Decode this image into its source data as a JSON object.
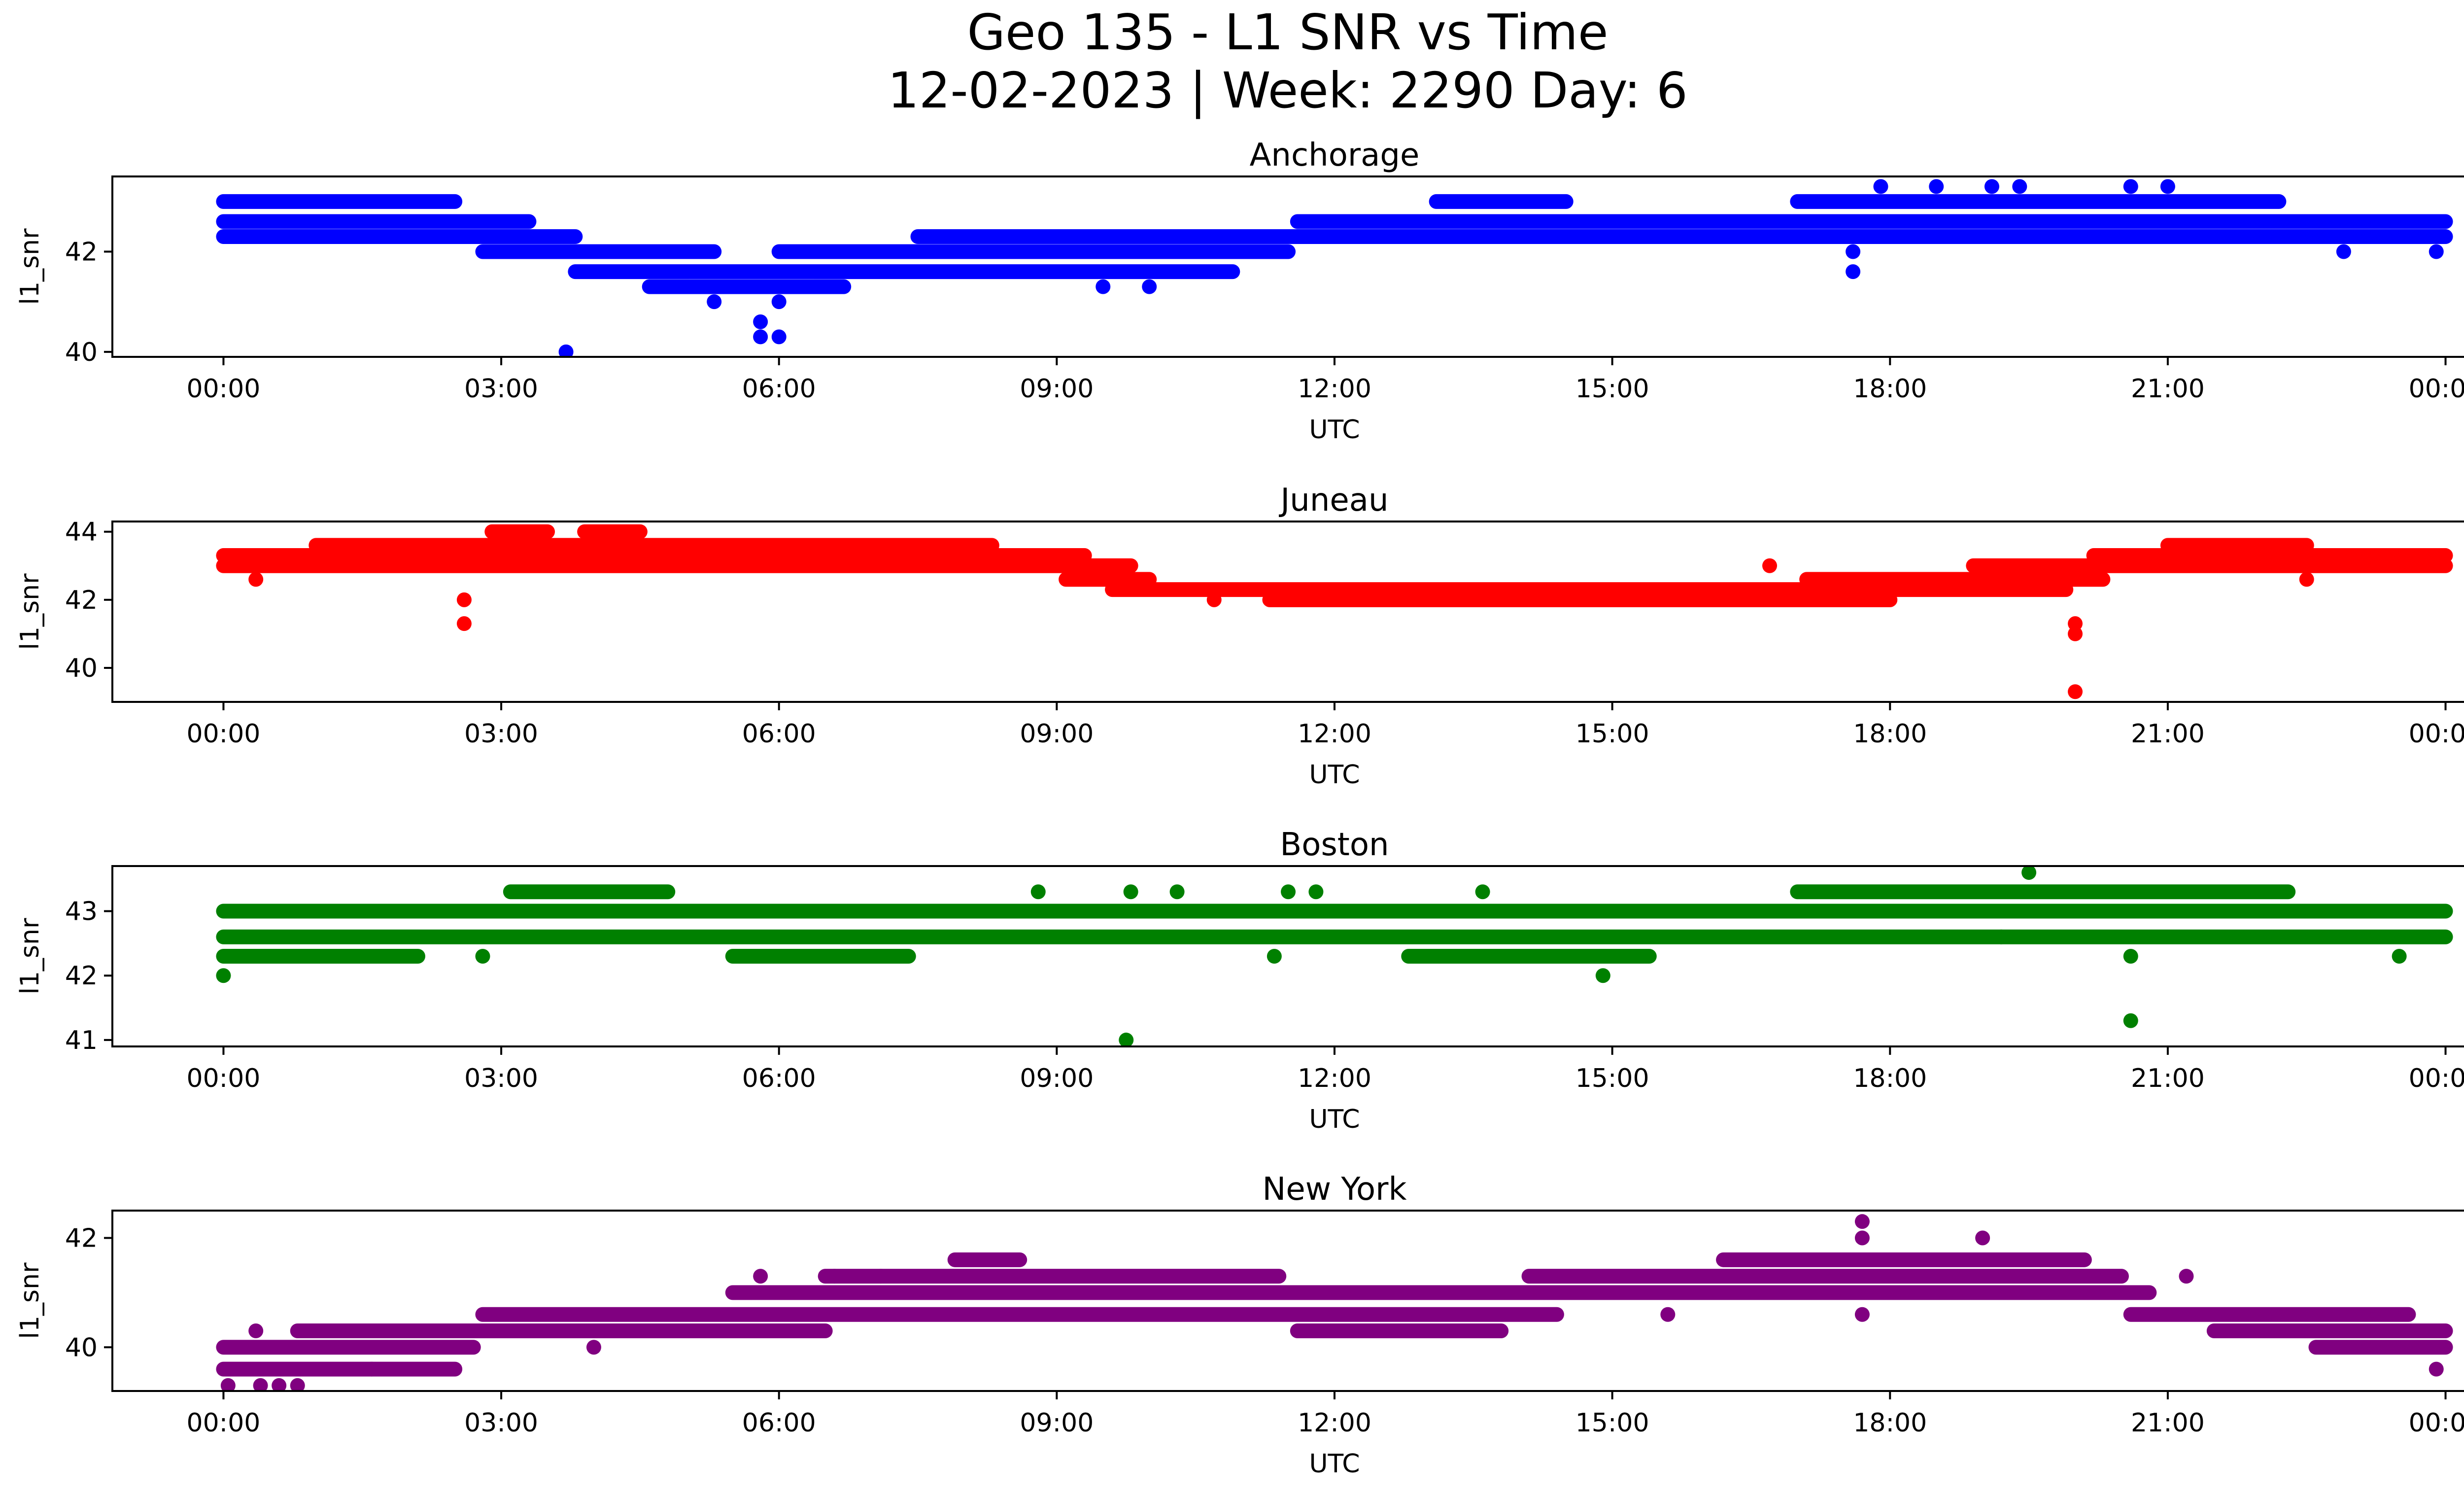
{
  "figure": {
    "title_line1": "Geo 135 - L1 SNR vs Time",
    "title_line2": "12-02-2023 | Week: 2290 Day: 6"
  },
  "chart_data": [
    {
      "type": "scatter",
      "title": "Anchorage",
      "xlabel": "UTC",
      "ylabel": "l1_snr",
      "color": "#0000ff",
      "x_ticks": [
        "00:00",
        "03:00",
        "06:00",
        "09:00",
        "12:00",
        "15:00",
        "18:00",
        "21:00",
        "00:00"
      ],
      "y_ticks": [
        40,
        42
      ],
      "ylim": [
        39.9,
        43.5
      ],
      "xlim_hours": [
        -1.2,
        25.2
      ],
      "bands": [
        {
          "y": 43.0,
          "segments": [
            [
              0.0,
              2.5
            ],
            [
              13.1,
              14.5
            ],
            [
              17.0,
              22.2
            ]
          ]
        },
        {
          "y": 42.6,
          "segments": [
            [
              0.0,
              3.3
            ],
            [
              11.6,
              24.0
            ]
          ]
        },
        {
          "y": 42.3,
          "segments": [
            [
              0.0,
              3.8
            ],
            [
              7.5,
              24.0
            ]
          ]
        },
        {
          "y": 42.0,
          "segments": [
            [
              2.8,
              5.3
            ],
            [
              6.0,
              11.5
            ]
          ]
        },
        {
          "y": 41.6,
          "segments": [
            [
              3.8,
              10.9
            ]
          ]
        },
        {
          "y": 41.3,
          "segments": [
            [
              4.6,
              6.7
            ]
          ]
        }
      ],
      "outliers": [
        [
          3.7,
          40.0
        ],
        [
          5.8,
          40.3
        ],
        [
          5.8,
          40.6
        ],
        [
          6.0,
          41.0
        ],
        [
          6.0,
          40.3
        ],
        [
          5.3,
          41.0
        ],
        [
          17.6,
          41.6
        ],
        [
          17.6,
          42.0
        ],
        [
          18.5,
          43.3
        ],
        [
          19.4,
          43.3
        ],
        [
          17.9,
          43.3
        ],
        [
          19.1,
          43.3
        ],
        [
          20.6,
          43.3
        ],
        [
          21.0,
          43.3
        ],
        [
          8.3,
          42.3
        ],
        [
          9.5,
          41.3
        ],
        [
          10.0,
          41.3
        ],
        [
          11.2,
          42.0
        ],
        [
          22.9,
          42.0
        ],
        [
          23.9,
          42.0
        ]
      ]
    },
    {
      "type": "scatter",
      "title": "Juneau",
      "xlabel": "UTC",
      "ylabel": "l1_snr",
      "color": "#ff0000",
      "x_ticks": [
        "00:00",
        "03:00",
        "06:00",
        "09:00",
        "12:00",
        "15:00",
        "18:00",
        "21:00",
        "00:00"
      ],
      "y_ticks": [
        40,
        42,
        44
      ],
      "ylim": [
        39.0,
        44.3
      ],
      "bands": [
        {
          "y": 44.0,
          "segments": [
            [
              2.9,
              3.5
            ],
            [
              3.9,
              4.5
            ]
          ]
        },
        {
          "y": 43.6,
          "segments": [
            [
              1.0,
              8.3
            ],
            [
              21.0,
              22.5
            ]
          ]
        },
        {
          "y": 43.3,
          "segments": [
            [
              0.0,
              9.3
            ],
            [
              20.2,
              24.0
            ]
          ]
        },
        {
          "y": 43.0,
          "segments": [
            [
              0.0,
              9.8
            ],
            [
              18.9,
              24.0
            ]
          ]
        },
        {
          "y": 42.6,
          "segments": [
            [
              9.1,
              10.0
            ],
            [
              17.1,
              20.3
            ]
          ]
        },
        {
          "y": 42.3,
          "segments": [
            [
              9.6,
              19.9
            ]
          ]
        },
        {
          "y": 42.0,
          "segments": [
            [
              11.3,
              18.0
            ]
          ]
        }
      ],
      "outliers": [
        [
          2.6,
          42.0
        ],
        [
          2.6,
          41.3
        ],
        [
          20.0,
          41.3
        ],
        [
          20.0,
          41.0
        ],
        [
          20.0,
          39.3
        ],
        [
          0.35,
          42.6
        ],
        [
          16.7,
          43.0
        ],
        [
          22.5,
          42.6
        ],
        [
          10.7,
          42.0
        ]
      ]
    },
    {
      "type": "scatter",
      "title": "Boston",
      "xlabel": "UTC",
      "ylabel": "l1_snr",
      "color": "#008000",
      "x_ticks": [
        "00:00",
        "03:00",
        "06:00",
        "09:00",
        "12:00",
        "15:00",
        "18:00",
        "21:00",
        "00:00"
      ],
      "y_ticks": [
        41,
        42,
        43
      ],
      "ylim": [
        40.9,
        43.7
      ],
      "bands": [
        {
          "y": 43.3,
          "segments": [
            [
              3.1,
              4.8
            ],
            [
              17.0,
              22.3
            ]
          ]
        },
        {
          "y": 43.0,
          "segments": [
            [
              0.0,
              24.0
            ]
          ]
        },
        {
          "y": 42.6,
          "segments": [
            [
              0.0,
              24.0
            ]
          ]
        },
        {
          "y": 42.3,
          "segments": [
            [
              0.0,
              2.1
            ],
            [
              5.5,
              7.4
            ],
            [
              12.8,
              15.4
            ]
          ]
        }
      ],
      "outliers": [
        [
          0.0,
          42.0
        ],
        [
          9.75,
          41.0
        ],
        [
          14.9,
          42.0
        ],
        [
          19.5,
          43.6
        ],
        [
          20.6,
          41.3
        ],
        [
          20.6,
          42.3
        ],
        [
          2.8,
          42.3
        ],
        [
          11.35,
          42.3
        ],
        [
          8.8,
          43.3
        ],
        [
          9.8,
          43.3
        ],
        [
          10.3,
          43.3
        ],
        [
          11.5,
          43.3
        ],
        [
          11.8,
          43.3
        ],
        [
          13.6,
          43.3
        ],
        [
          23.5,
          42.3
        ],
        [
          19.2,
          42.6
        ]
      ]
    },
    {
      "type": "scatter",
      "title": "New York",
      "xlabel": "UTC",
      "ylabel": "l1_snr",
      "color": "#800080",
      "x_ticks": [
        "00:00",
        "03:00",
        "06:00",
        "09:00",
        "12:00",
        "15:00",
        "18:00",
        "21:00",
        "00:00"
      ],
      "y_ticks": [
        40,
        42
      ],
      "ylim": [
        39.2,
        42.5
      ],
      "bands": [
        {
          "y": 41.6,
          "segments": [
            [
              7.9,
              8.6
            ],
            [
              16.2,
              20.1
            ]
          ]
        },
        {
          "y": 41.3,
          "segments": [
            [
              6.5,
              11.4
            ],
            [
              14.1,
              20.5
            ]
          ]
        },
        {
          "y": 41.0,
          "segments": [
            [
              5.5,
              20.8
            ]
          ]
        },
        {
          "y": 40.6,
          "segments": [
            [
              2.8,
              14.4
            ],
            [
              20.6,
              23.6
            ]
          ]
        },
        {
          "y": 40.3,
          "segments": [
            [
              0.8,
              6.5
            ],
            [
              11.6,
              13.8
            ],
            [
              21.5,
              24.0
            ]
          ]
        },
        {
          "y": 40.0,
          "segments": [
            [
              0.0,
              2.7
            ],
            [
              22.6,
              24.0
            ]
          ]
        },
        {
          "y": 39.6,
          "segments": [
            [
              0.0,
              1.6
            ],
            [
              1.6,
              2.5
            ]
          ]
        }
      ],
      "outliers": [
        [
          0.05,
          39.3
        ],
        [
          0.4,
          39.3
        ],
        [
          0.6,
          39.3
        ],
        [
          0.8,
          39.3
        ],
        [
          0.35,
          40.3
        ],
        [
          17.7,
          42.3
        ],
        [
          17.7,
          42.0
        ],
        [
          17.7,
          40.6
        ],
        [
          19.0,
          42.0
        ],
        [
          23.9,
          39.6
        ],
        [
          4.0,
          40.0
        ],
        [
          5.8,
          41.3
        ],
        [
          6.6,
          41.3
        ],
        [
          7.1,
          41.3
        ],
        [
          21.2,
          41.3
        ],
        [
          15.6,
          40.6
        ]
      ]
    }
  ]
}
